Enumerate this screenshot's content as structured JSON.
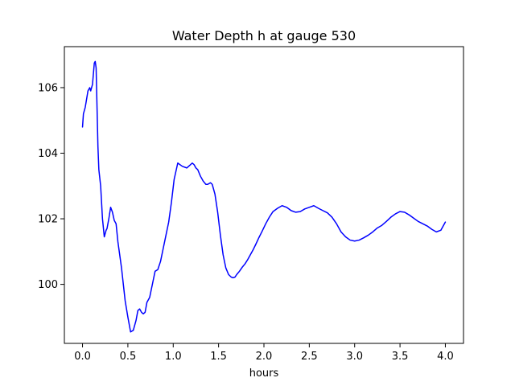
{
  "chart_data": {
    "type": "line",
    "title": "Water Depth h at gauge 530",
    "xlabel": "hours",
    "ylabel": "",
    "xlim": [
      -0.2,
      4.2
    ],
    "ylim": [
      98.2,
      107.25
    ],
    "xticks": [
      {
        "value": 0.0,
        "label": "0.0"
      },
      {
        "value": 0.5,
        "label": "0.5"
      },
      {
        "value": 1.0,
        "label": "1.0"
      },
      {
        "value": 1.5,
        "label": "1.5"
      },
      {
        "value": 2.0,
        "label": "2.0"
      },
      {
        "value": 2.5,
        "label": "2.5"
      },
      {
        "value": 3.0,
        "label": "3.0"
      },
      {
        "value": 3.5,
        "label": "3.5"
      },
      {
        "value": 4.0,
        "label": "4.0"
      }
    ],
    "yticks": [
      {
        "value": 100,
        "label": "100"
      },
      {
        "value": 102,
        "label": "102"
      },
      {
        "value": 104,
        "label": "104"
      },
      {
        "value": 106,
        "label": "106"
      }
    ],
    "grid": false,
    "series": [
      {
        "color": "#0000ff",
        "x": [
          0.0,
          0.01,
          0.03,
          0.06,
          0.08,
          0.09,
          0.11,
          0.13,
          0.14,
          0.15,
          0.16,
          0.17,
          0.18,
          0.2,
          0.22,
          0.24,
          0.26,
          0.27,
          0.29,
          0.31,
          0.33,
          0.35,
          0.37,
          0.39,
          0.41,
          0.43,
          0.45,
          0.47,
          0.5,
          0.53,
          0.56,
          0.59,
          0.61,
          0.63,
          0.65,
          0.67,
          0.69,
          0.71,
          0.74,
          0.77,
          0.8,
          0.83,
          0.86,
          0.89,
          0.92,
          0.95,
          0.98,
          1.01,
          1.05,
          1.1,
          1.15,
          1.19,
          1.21,
          1.23,
          1.25,
          1.27,
          1.3,
          1.33,
          1.36,
          1.38,
          1.41,
          1.43,
          1.46,
          1.49,
          1.52,
          1.55,
          1.58,
          1.61,
          1.64,
          1.66,
          1.68,
          1.7,
          1.73,
          1.76,
          1.79,
          1.82,
          1.85,
          1.88,
          1.91,
          1.94,
          1.98,
          2.02,
          2.06,
          2.1,
          2.15,
          2.2,
          2.25,
          2.3,
          2.35,
          2.4,
          2.45,
          2.5,
          2.55,
          2.6,
          2.65,
          2.7,
          2.75,
          2.8,
          2.85,
          2.9,
          2.95,
          3.0,
          3.05,
          3.1,
          3.15,
          3.2,
          3.25,
          3.3,
          3.35,
          3.4,
          3.45,
          3.5,
          3.55,
          3.6,
          3.65,
          3.7,
          3.75,
          3.8,
          3.85,
          3.9,
          3.95,
          4.0
        ],
        "y": [
          104.8,
          105.2,
          105.4,
          105.9,
          106.0,
          105.9,
          106.1,
          106.75,
          106.8,
          106.6,
          105.4,
          104.2,
          103.5,
          103.0,
          102.0,
          101.45,
          101.65,
          101.7,
          102.0,
          102.35,
          102.2,
          101.95,
          101.85,
          101.3,
          100.9,
          100.5,
          100.0,
          99.5,
          99.0,
          98.55,
          98.6,
          98.9,
          99.2,
          99.25,
          99.15,
          99.1,
          99.15,
          99.45,
          99.6,
          100.0,
          100.4,
          100.45,
          100.7,
          101.1,
          101.5,
          101.9,
          102.5,
          103.2,
          103.7,
          103.6,
          103.55,
          103.65,
          103.7,
          103.65,
          103.55,
          103.5,
          103.3,
          103.15,
          103.05,
          103.05,
          103.1,
          103.05,
          102.75,
          102.2,
          101.5,
          100.9,
          100.5,
          100.3,
          100.22,
          100.2,
          100.22,
          100.3,
          100.4,
          100.52,
          100.62,
          100.75,
          100.9,
          101.05,
          101.22,
          101.4,
          101.62,
          101.85,
          102.05,
          102.22,
          102.32,
          102.4,
          102.35,
          102.25,
          102.2,
          102.22,
          102.3,
          102.35,
          102.4,
          102.32,
          102.25,
          102.18,
          102.05,
          101.85,
          101.6,
          101.45,
          101.35,
          101.32,
          101.35,
          101.42,
          101.5,
          101.6,
          101.72,
          101.8,
          101.92,
          102.05,
          102.15,
          102.22,
          102.2,
          102.12,
          102.02,
          101.92,
          101.85,
          101.78,
          101.68,
          101.6,
          101.65,
          101.9
        ]
      }
    ]
  }
}
